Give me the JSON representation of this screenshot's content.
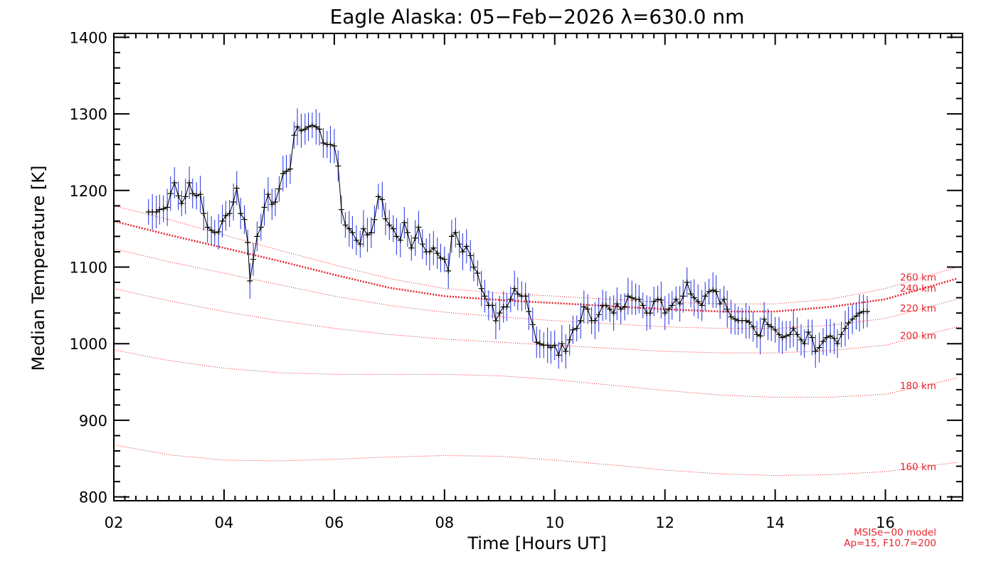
{
  "chart_data": {
    "type": "line",
    "title": "Eagle Alaska: 05−Feb−2026 λ=630.0 nm",
    "xlabel": "Time [Hours UT]",
    "ylabel": "Median Temperature [K]",
    "xlim": [
      2.0,
      17.4
    ],
    "ylim": [
      795,
      1405
    ],
    "x_ticks": [
      2,
      4,
      6,
      8,
      10,
      12,
      14,
      16
    ],
    "x_tick_labels": [
      "02",
      "04",
      "06",
      "08",
      "10",
      "12",
      "14",
      "16"
    ],
    "y_ticks": [
      800,
      900,
      1000,
      1100,
      1200,
      1300,
      1400
    ],
    "y_tick_labels": [
      "800",
      "900",
      "1000",
      "1100",
      "1200",
      "1300",
      "1400"
    ],
    "grid": false,
    "colors": {
      "data_line": "#000000",
      "error_bars": "#1f2ee0",
      "model_lines": "#e8242c",
      "axes": "#000000"
    },
    "series": [
      {
        "points": [
          [
            2.63,
            1172
          ],
          [
            2.7,
            1172
          ],
          [
            2.77,
            1172
          ],
          [
            2.83,
            1175
          ],
          [
            2.9,
            1176
          ],
          [
            2.97,
            1178
          ],
          [
            3.03,
            1196
          ],
          [
            3.1,
            1210
          ],
          [
            3.17,
            1193
          ],
          [
            3.23,
            1183
          ],
          [
            3.3,
            1192
          ],
          [
            3.37,
            1210
          ],
          [
            3.43,
            1196
          ],
          [
            3.5,
            1193
          ],
          [
            3.57,
            1195
          ],
          [
            3.63,
            1170
          ],
          [
            3.7,
            1152
          ],
          [
            3.77,
            1148
          ],
          [
            3.83,
            1145
          ],
          [
            3.9,
            1146
          ],
          [
            3.97,
            1160
          ],
          [
            4.03,
            1167
          ],
          [
            4.1,
            1170
          ],
          [
            4.17,
            1185
          ],
          [
            4.23,
            1203
          ],
          [
            4.3,
            1170
          ],
          [
            4.37,
            1162
          ],
          [
            4.43,
            1132
          ],
          [
            4.47,
            1082
          ],
          [
            4.53,
            1110
          ],
          [
            4.6,
            1140
          ],
          [
            4.67,
            1152
          ],
          [
            4.73,
            1178
          ],
          [
            4.8,
            1195
          ],
          [
            4.87,
            1182
          ],
          [
            4.93,
            1185
          ],
          [
            5.0,
            1202
          ],
          [
            5.07,
            1222
          ],
          [
            5.13,
            1225
          ],
          [
            5.2,
            1228
          ],
          [
            5.27,
            1272
          ],
          [
            5.33,
            1283
          ],
          [
            5.4,
            1278
          ],
          [
            5.47,
            1280
          ],
          [
            5.53,
            1283
          ],
          [
            5.6,
            1285
          ],
          [
            5.67,
            1283
          ],
          [
            5.73,
            1280
          ],
          [
            5.8,
            1262
          ],
          [
            5.87,
            1260
          ],
          [
            5.93,
            1260
          ],
          [
            6.0,
            1258
          ],
          [
            6.07,
            1232
          ],
          [
            6.13,
            1175
          ],
          [
            6.2,
            1155
          ],
          [
            6.27,
            1150
          ],
          [
            6.33,
            1145
          ],
          [
            6.4,
            1135
          ],
          [
            6.47,
            1130
          ],
          [
            6.53,
            1150
          ],
          [
            6.6,
            1142
          ],
          [
            6.67,
            1145
          ],
          [
            6.73,
            1162
          ],
          [
            6.8,
            1192
          ],
          [
            6.87,
            1188
          ],
          [
            6.93,
            1163
          ],
          [
            7.0,
            1155
          ],
          [
            7.07,
            1150
          ],
          [
            7.13,
            1140
          ],
          [
            7.2,
            1135
          ],
          [
            7.27,
            1158
          ],
          [
            7.33,
            1145
          ],
          [
            7.4,
            1125
          ],
          [
            7.47,
            1138
          ],
          [
            7.53,
            1152
          ],
          [
            7.6,
            1130
          ],
          [
            7.67,
            1120
          ],
          [
            7.73,
            1120
          ],
          [
            7.8,
            1125
          ],
          [
            7.87,
            1118
          ],
          [
            7.93,
            1112
          ],
          [
            8.0,
            1110
          ],
          [
            8.07,
            1095
          ],
          [
            8.13,
            1140
          ],
          [
            8.2,
            1145
          ],
          [
            8.27,
            1130
          ],
          [
            8.33,
            1120
          ],
          [
            8.4,
            1127
          ],
          [
            8.47,
            1115
          ],
          [
            8.53,
            1100
          ],
          [
            8.6,
            1092
          ],
          [
            8.67,
            1072
          ],
          [
            8.73,
            1062
          ],
          [
            8.8,
            1050
          ],
          [
            8.87,
            1050
          ],
          [
            8.93,
            1030
          ],
          [
            9.0,
            1040
          ],
          [
            9.07,
            1048
          ],
          [
            9.13,
            1048
          ],
          [
            9.2,
            1058
          ],
          [
            9.27,
            1072
          ],
          [
            9.33,
            1065
          ],
          [
            9.4,
            1062
          ],
          [
            9.47,
            1062
          ],
          [
            9.53,
            1042
          ],
          [
            9.6,
            1025
          ],
          [
            9.67,
            1002
          ],
          [
            9.73,
            1000
          ],
          [
            9.8,
            998
          ],
          [
            9.87,
            998
          ],
          [
            9.93,
            995
          ],
          [
            10.0,
            998
          ],
          [
            10.07,
            985
          ],
          [
            10.13,
            1000
          ],
          [
            10.2,
            990
          ],
          [
            10.27,
            1005
          ],
          [
            10.33,
            1018
          ],
          [
            10.4,
            1020
          ],
          [
            10.47,
            1030
          ],
          [
            10.53,
            1048
          ],
          [
            10.6,
            1045
          ],
          [
            10.67,
            1030
          ],
          [
            10.73,
            1030
          ],
          [
            10.8,
            1038
          ],
          [
            10.87,
            1050
          ],
          [
            10.93,
            1050
          ],
          [
            11.0,
            1045
          ],
          [
            11.07,
            1040
          ],
          [
            11.13,
            1052
          ],
          [
            11.2,
            1045
          ],
          [
            11.27,
            1048
          ],
          [
            11.33,
            1062
          ],
          [
            11.4,
            1060
          ],
          [
            11.47,
            1058
          ],
          [
            11.53,
            1058
          ],
          [
            11.6,
            1050
          ],
          [
            11.67,
            1040
          ],
          [
            11.73,
            1040
          ],
          [
            11.8,
            1055
          ],
          [
            11.87,
            1058
          ],
          [
            11.93,
            1057
          ],
          [
            12.0,
            1040
          ],
          [
            12.07,
            1045
          ],
          [
            12.13,
            1050
          ],
          [
            12.2,
            1058
          ],
          [
            12.27,
            1052
          ],
          [
            12.33,
            1062
          ],
          [
            12.4,
            1080
          ],
          [
            12.47,
            1065
          ],
          [
            12.53,
            1060
          ],
          [
            12.6,
            1055
          ],
          [
            12.67,
            1050
          ],
          [
            12.73,
            1062
          ],
          [
            12.8,
            1068
          ],
          [
            12.87,
            1070
          ],
          [
            12.93,
            1068
          ],
          [
            13.0,
            1052
          ],
          [
            13.07,
            1058
          ],
          [
            13.13,
            1045
          ],
          [
            13.2,
            1035
          ],
          [
            13.27,
            1032
          ],
          [
            13.33,
            1030
          ],
          [
            13.4,
            1030
          ],
          [
            13.47,
            1030
          ],
          [
            13.53,
            1028
          ],
          [
            13.6,
            1022
          ],
          [
            13.67,
            1012
          ],
          [
            13.73,
            1010
          ],
          [
            13.8,
            1032
          ],
          [
            13.87,
            1025
          ],
          [
            13.93,
            1022
          ],
          [
            14.0,
            1018
          ],
          [
            14.07,
            1012
          ],
          [
            14.13,
            1008
          ],
          [
            14.2,
            1010
          ],
          [
            14.27,
            1012
          ],
          [
            14.33,
            1020
          ],
          [
            14.4,
            1012
          ],
          [
            14.47,
            1005
          ],
          [
            14.53,
            1000
          ],
          [
            14.6,
            1015
          ],
          [
            14.67,
            1008
          ],
          [
            14.73,
            990
          ],
          [
            14.8,
            995
          ],
          [
            14.87,
            1003
          ],
          [
            14.93,
            1008
          ],
          [
            15.0,
            1010
          ],
          [
            15.07,
            1007
          ],
          [
            15.13,
            1000
          ],
          [
            15.2,
            1012
          ],
          [
            15.27,
            1020
          ],
          [
            15.33,
            1027
          ],
          [
            15.4,
            1032
          ],
          [
            15.47,
            1036
          ],
          [
            15.53,
            1040
          ],
          [
            15.6,
            1042
          ],
          [
            15.67,
            1042
          ]
        ]
      }
    ],
    "model_lines": [
      {
        "label": "160 km",
        "points": [
          [
            2.0,
            868
          ],
          [
            3.0,
            855
          ],
          [
            4.0,
            848
          ],
          [
            5.0,
            847
          ],
          [
            6.0,
            849
          ],
          [
            7.0,
            852
          ],
          [
            8.0,
            854
          ],
          [
            9.0,
            853
          ],
          [
            10.0,
            848
          ],
          [
            11.0,
            842
          ],
          [
            12.0,
            835
          ],
          [
            13.0,
            830
          ],
          [
            14.0,
            828
          ],
          [
            15.0,
            829
          ],
          [
            16.0,
            833
          ],
          [
            17.3,
            845
          ]
        ]
      },
      {
        "label": "180 km",
        "points": [
          [
            2.0,
            992
          ],
          [
            3.0,
            978
          ],
          [
            4.0,
            968
          ],
          [
            5.0,
            962
          ],
          [
            6.0,
            960
          ],
          [
            7.0,
            960
          ],
          [
            8.0,
            960
          ],
          [
            9.0,
            958
          ],
          [
            10.0,
            953
          ],
          [
            11.0,
            946
          ],
          [
            12.0,
            939
          ],
          [
            13.0,
            933
          ],
          [
            14.0,
            930
          ],
          [
            15.0,
            930
          ],
          [
            16.0,
            934
          ],
          [
            17.3,
            955
          ]
        ]
      },
      {
        "label": "200 km",
        "points": [
          [
            2.0,
            1072
          ],
          [
            3.0,
            1056
          ],
          [
            4.0,
            1042
          ],
          [
            5.0,
            1030
          ],
          [
            6.0,
            1020
          ],
          [
            7.0,
            1012
          ],
          [
            8.0,
            1006
          ],
          [
            9.0,
            1002
          ],
          [
            10.0,
            998
          ],
          [
            11.0,
            994
          ],
          [
            12.0,
            990
          ],
          [
            13.0,
            988
          ],
          [
            14.0,
            988
          ],
          [
            15.0,
            991
          ],
          [
            16.0,
            998
          ],
          [
            17.3,
            1022
          ]
        ]
      },
      {
        "label": "220 km",
        "points": [
          [
            2.0,
            1124
          ],
          [
            3.0,
            1107
          ],
          [
            4.0,
            1092
          ],
          [
            5.0,
            1077
          ],
          [
            6.0,
            1062
          ],
          [
            7.0,
            1050
          ],
          [
            8.0,
            1041
          ],
          [
            9.0,
            1035
          ],
          [
            10.0,
            1030
          ],
          [
            11.0,
            1026
          ],
          [
            12.0,
            1022
          ],
          [
            13.0,
            1020
          ],
          [
            14.0,
            1020
          ],
          [
            15.0,
            1024
          ],
          [
            16.0,
            1033
          ],
          [
            17.3,
            1058
          ]
        ]
      },
      {
        "label": "240 km",
        "points": [
          [
            2.0,
            1160
          ],
          [
            3.0,
            1142
          ],
          [
            4.0,
            1125
          ],
          [
            5.0,
            1108
          ],
          [
            6.0,
            1090
          ],
          [
            7.0,
            1073
          ],
          [
            8.0,
            1062
          ],
          [
            9.0,
            1057
          ],
          [
            10.0,
            1053
          ],
          [
            11.0,
            1049
          ],
          [
            12.0,
            1045
          ],
          [
            13.0,
            1042
          ],
          [
            14.0,
            1042
          ],
          [
            15.0,
            1048
          ],
          [
            16.0,
            1058
          ],
          [
            17.3,
            1085
          ]
        ]
      },
      {
        "label": "260 km",
        "points": [
          [
            2.0,
            1180
          ],
          [
            3.0,
            1162
          ],
          [
            4.0,
            1142
          ],
          [
            5.0,
            1122
          ],
          [
            6.0,
            1103
          ],
          [
            7.0,
            1085
          ],
          [
            8.0,
            1072
          ],
          [
            9.0,
            1066
          ],
          [
            10.0,
            1062
          ],
          [
            11.0,
            1058
          ],
          [
            12.0,
            1054
          ],
          [
            13.0,
            1052
          ],
          [
            14.0,
            1052
          ],
          [
            15.0,
            1058
          ],
          [
            16.0,
            1072
          ],
          [
            17.3,
            1100
          ]
        ]
      }
    ],
    "model_note": [
      "MSISe−00 model",
      "Ap=15, F10.7=200"
    ]
  }
}
